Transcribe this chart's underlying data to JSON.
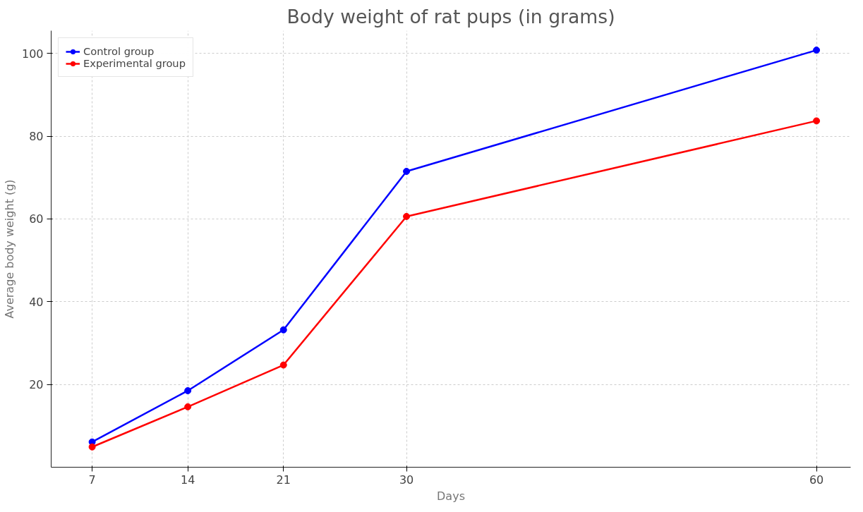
{
  "chart_data": {
    "type": "line",
    "title": "Body weight of rat pups (in grams)",
    "xlabel": "Days",
    "ylabel": "Average body weight (g)",
    "x": [
      7,
      14,
      21,
      30,
      60
    ],
    "series": [
      {
        "name": "Control group",
        "color": "#0000ff",
        "values": [
          6.1,
          18.5,
          33.2,
          71.5,
          100.8
        ]
      },
      {
        "name": "Experimental group",
        "color": "#ff0000",
        "values": [
          4.9,
          14.6,
          24.7,
          60.6,
          83.7
        ]
      }
    ],
    "xlim": [
      4,
      62.5
    ],
    "xticks": [
      7,
      14,
      21,
      30,
      60
    ],
    "ylim": [
      0,
      105.5
    ],
    "yticks": [
      20,
      40,
      60,
      80,
      100
    ],
    "grid": true,
    "legend": "top left",
    "marker": "circle",
    "line_style": "solid"
  }
}
